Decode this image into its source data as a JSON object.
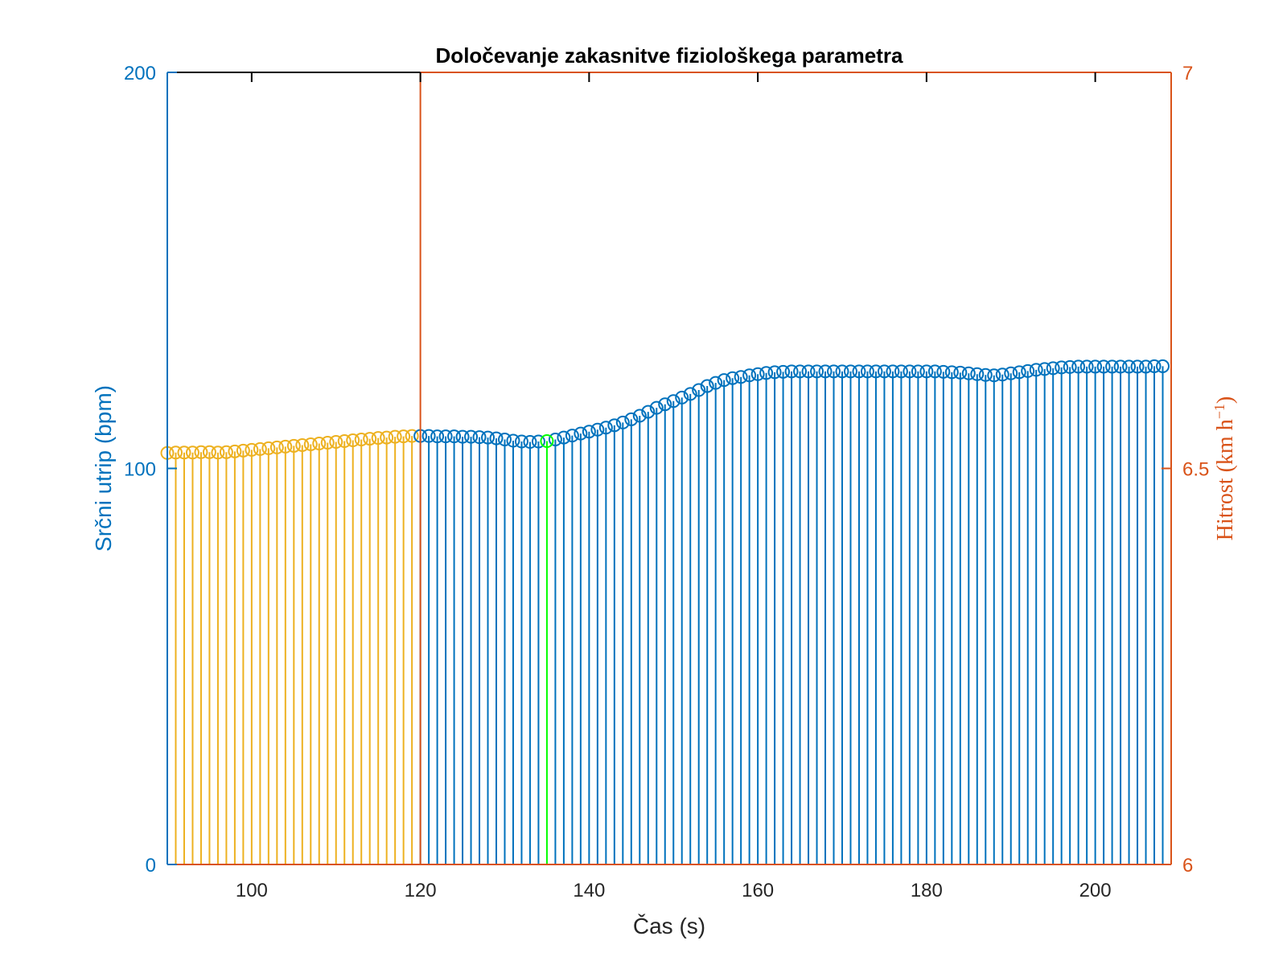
{
  "chart_data": {
    "type": "stem",
    "title": "Določevanje zakasnitve fiziološkega parametra",
    "xlabel": "Čas (s)",
    "ylabel_left": "Srčni utrip (bpm)",
    "ylabel_right": {
      "text": "Hitrost",
      "unit_main": "(km h",
      "unit_sup": "−1",
      "unit_end": ")"
    },
    "xlim": [
      90,
      209
    ],
    "ylim_left": [
      0,
      200
    ],
    "ylim_right": [
      6,
      7
    ],
    "xticks": [
      "100",
      "120",
      "140",
      "160",
      "180",
      "200"
    ],
    "xtick_values": [
      100,
      120,
      140,
      160,
      180,
      200
    ],
    "yticks_left": [
      "0",
      "100",
      "200"
    ],
    "ytick_left_values": [
      0,
      100,
      200
    ],
    "yticks_right": [
      "6",
      "6.5",
      "7"
    ],
    "ytick_right_values": [
      6,
      6.5,
      7
    ],
    "colors": {
      "left_axis": "#0072BD",
      "right_axis": "#D95319",
      "series_before": "#EDB120",
      "series_after": "#0072BD",
      "marker": "#00FF00",
      "frame": "#000000"
    },
    "series": [
      {
        "role": "before",
        "x_start": 90,
        "x_step": 1,
        "values": [
          103.9,
          104.0,
          104.0,
          104.0,
          104.1,
          104.1,
          104.0,
          104.1,
          104.3,
          104.5,
          104.7,
          104.9,
          105.1,
          105.3,
          105.5,
          105.7,
          105.9,
          106.1,
          106.3,
          106.5,
          106.7,
          106.9,
          107.1,
          107.3,
          107.5,
          107.7,
          107.8,
          108.0,
          108.1,
          108.2
        ]
      },
      {
        "role": "after",
        "x_start": 120,
        "x_step": 1,
        "values": [
          108.2,
          108.2,
          108.1,
          108.1,
          108.1,
          108.0,
          108.0,
          107.9,
          107.8,
          107.6,
          107.3,
          107.0,
          106.8,
          106.7,
          106.8,
          106.9,
          107.3,
          107.8,
          108.3,
          108.8,
          109.3,
          109.8,
          110.3,
          110.9,
          111.6,
          112.4,
          113.3,
          114.3,
          115.3,
          116.2,
          117.0,
          117.9,
          118.8,
          119.8,
          120.8,
          121.6,
          122.3,
          122.8,
          123.1,
          123.5,
          123.8,
          124.1,
          124.3,
          124.4,
          124.5,
          124.5,
          124.5,
          124.5,
          124.5,
          124.5,
          124.5,
          124.5,
          124.5,
          124.5,
          124.5,
          124.5,
          124.5,
          124.5,
          124.5,
          124.5,
          124.5,
          124.5,
          124.4,
          124.3,
          124.2,
          124.0,
          123.8,
          123.6,
          123.5,
          123.7,
          124.0,
          124.3,
          124.6,
          124.9,
          125.1,
          125.3,
          125.5,
          125.6,
          125.7,
          125.7,
          125.7,
          125.7,
          125.7,
          125.7,
          125.7,
          125.7,
          125.7,
          125.8,
          125.8
        ]
      }
    ],
    "step_marker": {
      "x": 120
    },
    "delay_marker": {
      "x": 135,
      "value": 106.9
    }
  }
}
